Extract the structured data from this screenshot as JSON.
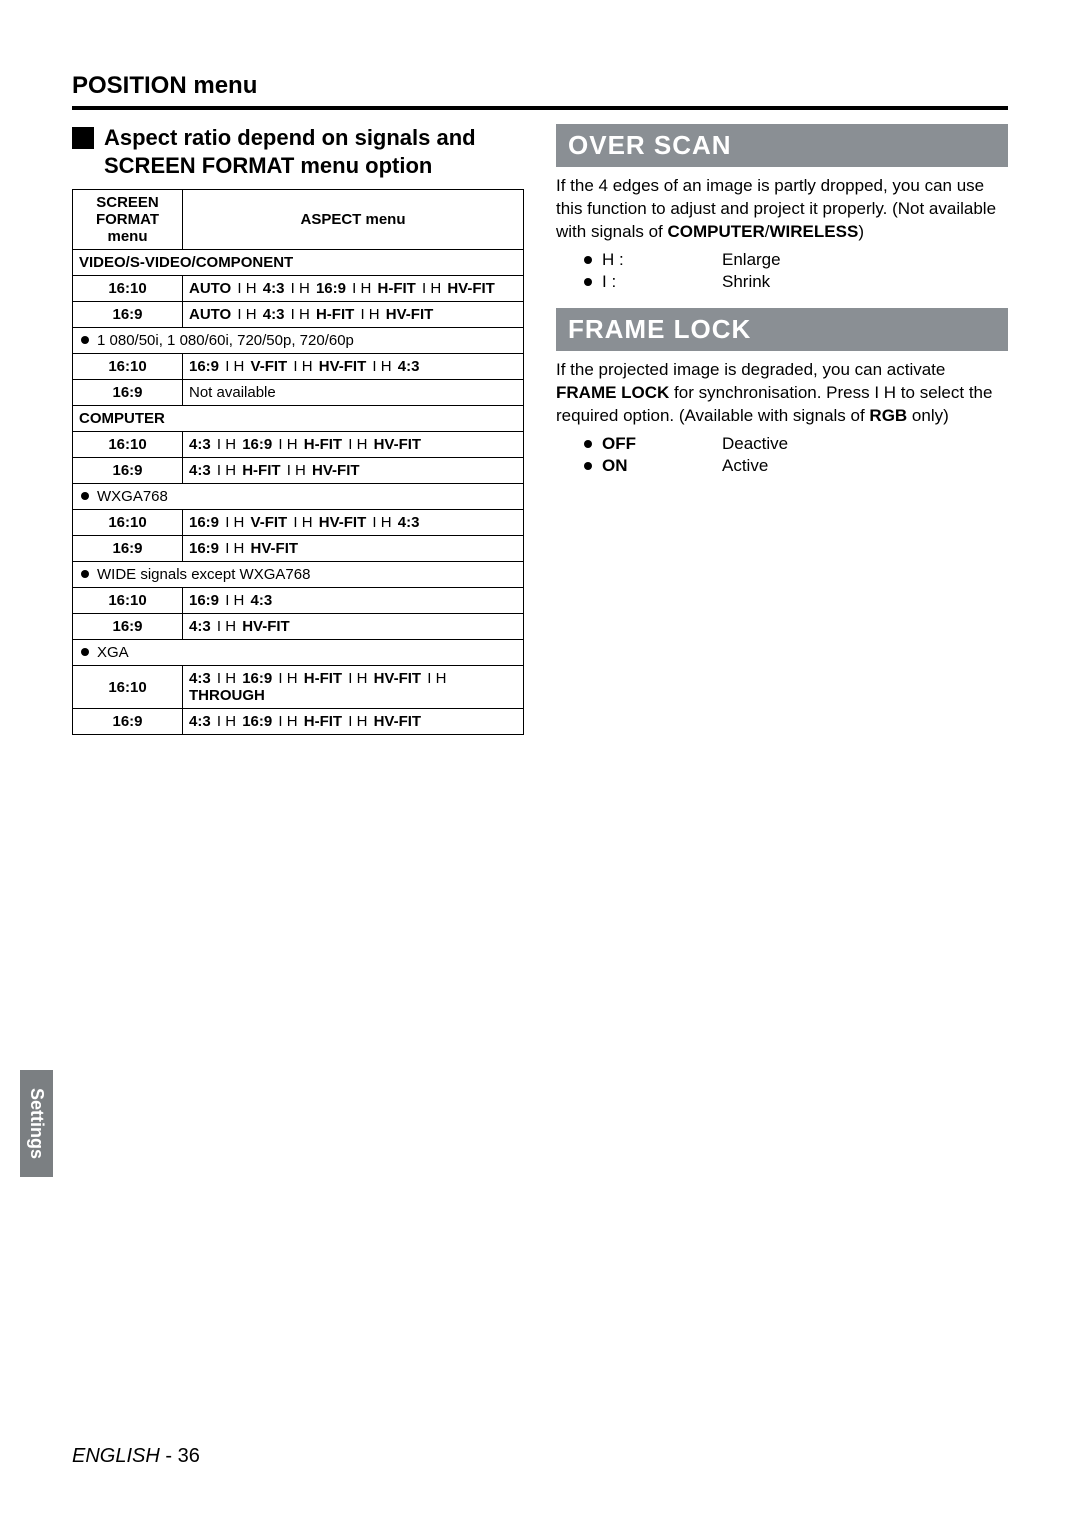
{
  "page_title": "POSITION menu",
  "left_section": {
    "heading": "Aspect ratio depend on signals and SCREEN FORMAT menu option",
    "table": {
      "header_left": "SCREEN FORMAT menu",
      "header_right": "ASPECT menu",
      "groups": [
        {
          "span_label": "VIDEO/S-VIDEO/COMPONENT",
          "rows": [
            {
              "ratio": "16:10",
              "seq": [
                [
                  "AUTO",
                  "I H"
                ],
                [
                  "4:3",
                  "I H"
                ],
                [
                  "16:9",
                  "I H"
                ],
                [
                  "H-FIT",
                  "I H"
                ],
                [
                  "HV-FIT",
                  ""
                ]
              ]
            },
            {
              "ratio": "16:9",
              "seq": [
                [
                  "AUTO",
                  "I H"
                ],
                [
                  "4:3",
                  "I H"
                ],
                [
                  "H-FIT",
                  "I H"
                ],
                [
                  "HV-FIT",
                  ""
                ]
              ]
            }
          ],
          "subgroups": [
            {
              "bullet_label": "1 080/50i, 1 080/60i, 720/50p, 720/60p",
              "rows": [
                {
                  "ratio": "16:10",
                  "seq": [
                    [
                      "16:9",
                      "I H"
                    ],
                    [
                      "V-FIT",
                      "I H"
                    ],
                    [
                      "HV-FIT",
                      "I H"
                    ],
                    [
                      "4:3",
                      ""
                    ]
                  ]
                },
                {
                  "ratio": "16:9",
                  "text": "Not available"
                }
              ]
            }
          ]
        },
        {
          "span_label": "COMPUTER",
          "rows": [
            {
              "ratio": "16:10",
              "seq": [
                [
                  "4:3",
                  "I H"
                ],
                [
                  "16:9",
                  "I H"
                ],
                [
                  "H-FIT",
                  "I H"
                ],
                [
                  "HV-FIT",
                  ""
                ]
              ]
            },
            {
              "ratio": "16:9",
              "seq": [
                [
                  "4:3",
                  "I H"
                ],
                [
                  "H-FIT",
                  "I H"
                ],
                [
                  "HV-FIT",
                  ""
                ]
              ]
            }
          ],
          "subgroups": [
            {
              "bullet_label": "WXGA768",
              "rows": [
                {
                  "ratio": "16:10",
                  "seq": [
                    [
                      "16:9",
                      "I H"
                    ],
                    [
                      "V-FIT",
                      "I H"
                    ],
                    [
                      "HV-FIT",
                      "I H"
                    ],
                    [
                      "4:3",
                      ""
                    ]
                  ]
                },
                {
                  "ratio": "16:9",
                  "seq": [
                    [
                      "16:9",
                      "I H"
                    ],
                    [
                      "HV-FIT",
                      ""
                    ]
                  ]
                }
              ]
            },
            {
              "bullet_label": "WIDE signals except WXGA768",
              "rows": [
                {
                  "ratio": "16:10",
                  "seq": [
                    [
                      "16:9",
                      "I H"
                    ],
                    [
                      "4:3",
                      ""
                    ]
                  ]
                },
                {
                  "ratio": "16:9",
                  "seq": [
                    [
                      "4:3",
                      "I H"
                    ],
                    [
                      "HV-FIT",
                      ""
                    ]
                  ]
                }
              ]
            },
            {
              "bullet_label": "XGA",
              "rows": [
                {
                  "ratio": "16:10",
                  "seq": [
                    [
                      "4:3",
                      "I H"
                    ],
                    [
                      "16:9",
                      "I H"
                    ],
                    [
                      "H-FIT",
                      "I H"
                    ],
                    [
                      "HV-FIT",
                      "I H"
                    ],
                    [
                      "THROUGH",
                      ""
                    ]
                  ]
                },
                {
                  "ratio": "16:9",
                  "seq": [
                    [
                      "4:3",
                      "I H"
                    ],
                    [
                      "16:9",
                      "I H"
                    ],
                    [
                      "H-FIT",
                      "I H"
                    ],
                    [
                      "HV-FIT",
                      ""
                    ]
                  ]
                }
              ]
            }
          ]
        }
      ]
    }
  },
  "right_sections": [
    {
      "title": "OVER SCAN",
      "body_parts": [
        "If the 4 edges of an image is partly dropped, you can use this function to adjust and project it properly. (Not available with signals of ",
        "COMPUTER",
        "/",
        "WIRELESS",
        ")"
      ],
      "items": [
        {
          "key": "H :",
          "key_bold": false,
          "val": "Enlarge"
        },
        {
          "key": "I  :",
          "key_bold": false,
          "val": "Shrink"
        }
      ]
    },
    {
      "title": "FRAME LOCK",
      "body_parts": [
        "If the projected image is degraded, you can activate ",
        "FRAME LOCK",
        " for synchronisation. Press I   H  to select the required option. (Available with signals of ",
        "RGB",
        " only)"
      ],
      "items": [
        {
          "key": "OFF",
          "key_bold": true,
          "val": "Deactive"
        },
        {
          "key": "ON",
          "key_bold": true,
          "val": "Active"
        }
      ]
    }
  ],
  "side_tab": "Settings",
  "footer_lang": "ENGLISH",
  "footer_page": " - 36",
  "colors": {
    "menu_box_bg": "#8a8f94",
    "side_tab_bg": "#7b7f82",
    "text": "#000000",
    "bg": "#ffffff"
  }
}
